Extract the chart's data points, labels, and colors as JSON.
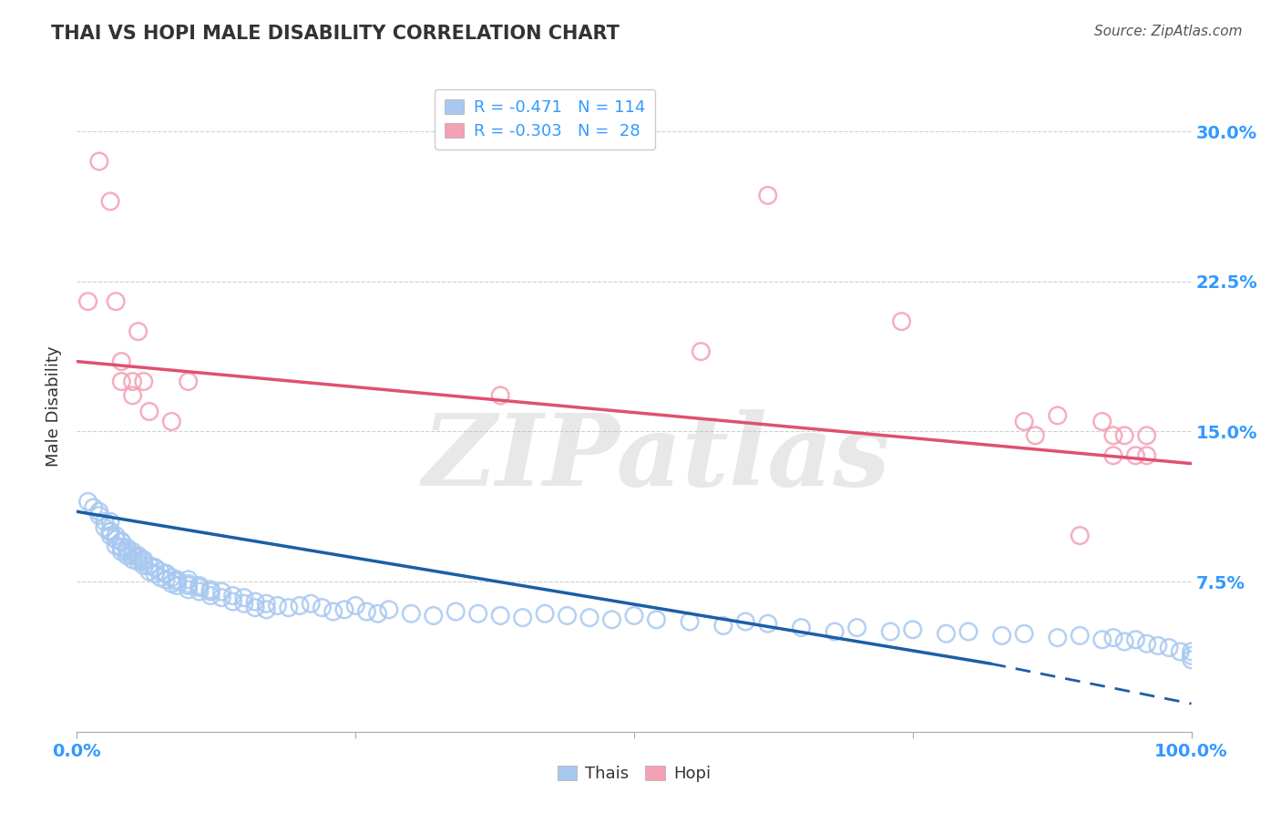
{
  "title": "THAI VS HOPI MALE DISABILITY CORRELATION CHART",
  "source_text": "Source: ZipAtlas.com",
  "watermark": "ZIPatlas",
  "ylabel": "Male Disability",
  "xlim": [
    0,
    1.0
  ],
  "ylim": [
    0.0,
    0.325
  ],
  "yticks": [
    0.075,
    0.15,
    0.225,
    0.3
  ],
  "ytick_labels": [
    "7.5%",
    "15.0%",
    "22.5%",
    "30.0%"
  ],
  "xticks": [
    0.0,
    0.25,
    0.5,
    0.75,
    1.0
  ],
  "xtick_labels": [
    "0.0%",
    "",
    "",
    "",
    "100.0%"
  ],
  "thai_R": -0.471,
  "thai_N": 114,
  "hopi_R": -0.303,
  "hopi_N": 28,
  "thai_color": "#A8C8F0",
  "hopi_color": "#F4A0B5",
  "thai_line_color": "#1B5EA8",
  "hopi_line_color": "#E05070",
  "background_color": "#FFFFFF",
  "grid_color": "#BBBBBB",
  "title_color": "#333333",
  "source_color": "#555555",
  "axis_label_color": "#333333",
  "tick_label_color": "#3399FF",
  "thai_x": [
    0.01,
    0.015,
    0.02,
    0.02,
    0.025,
    0.025,
    0.03,
    0.03,
    0.03,
    0.03,
    0.035,
    0.035,
    0.035,
    0.04,
    0.04,
    0.04,
    0.04,
    0.04,
    0.045,
    0.045,
    0.045,
    0.05,
    0.05,
    0.05,
    0.055,
    0.055,
    0.055,
    0.06,
    0.06,
    0.06,
    0.065,
    0.065,
    0.07,
    0.07,
    0.07,
    0.075,
    0.075,
    0.08,
    0.08,
    0.08,
    0.085,
    0.085,
    0.09,
    0.09,
    0.09,
    0.1,
    0.1,
    0.1,
    0.1,
    0.11,
    0.11,
    0.11,
    0.12,
    0.12,
    0.12,
    0.13,
    0.13,
    0.14,
    0.14,
    0.15,
    0.15,
    0.16,
    0.16,
    0.17,
    0.17,
    0.18,
    0.19,
    0.2,
    0.21,
    0.22,
    0.23,
    0.24,
    0.25,
    0.26,
    0.27,
    0.28,
    0.3,
    0.32,
    0.34,
    0.36,
    0.38,
    0.4,
    0.42,
    0.44,
    0.46,
    0.48,
    0.5,
    0.52,
    0.55,
    0.58,
    0.6,
    0.62,
    0.65,
    0.68,
    0.7,
    0.73,
    0.75,
    0.78,
    0.8,
    0.83,
    0.85,
    0.88,
    0.9,
    0.92,
    0.93,
    0.94,
    0.95,
    0.96,
    0.97,
    0.98,
    0.99,
    1.0,
    1.0,
    1.0
  ],
  "thai_y": [
    0.115,
    0.112,
    0.11,
    0.108,
    0.105,
    0.102,
    0.1,
    0.098,
    0.105,
    0.1,
    0.098,
    0.096,
    0.093,
    0.095,
    0.092,
    0.09,
    0.092,
    0.095,
    0.09,
    0.088,
    0.092,
    0.088,
    0.086,
    0.09,
    0.087,
    0.085,
    0.088,
    0.085,
    0.083,
    0.086,
    0.083,
    0.08,
    0.082,
    0.079,
    0.082,
    0.08,
    0.077,
    0.079,
    0.076,
    0.079,
    0.077,
    0.074,
    0.076,
    0.073,
    0.075,
    0.074,
    0.071,
    0.073,
    0.076,
    0.072,
    0.07,
    0.073,
    0.071,
    0.068,
    0.07,
    0.07,
    0.067,
    0.068,
    0.065,
    0.067,
    0.064,
    0.065,
    0.062,
    0.064,
    0.061,
    0.063,
    0.062,
    0.063,
    0.064,
    0.062,
    0.06,
    0.061,
    0.063,
    0.06,
    0.059,
    0.061,
    0.059,
    0.058,
    0.06,
    0.059,
    0.058,
    0.057,
    0.059,
    0.058,
    0.057,
    0.056,
    0.058,
    0.056,
    0.055,
    0.053,
    0.055,
    0.054,
    0.052,
    0.05,
    0.052,
    0.05,
    0.051,
    0.049,
    0.05,
    0.048,
    0.049,
    0.047,
    0.048,
    0.046,
    0.047,
    0.045,
    0.046,
    0.044,
    0.043,
    0.042,
    0.04,
    0.038,
    0.036,
    0.04
  ],
  "hopi_x": [
    0.01,
    0.02,
    0.03,
    0.035,
    0.04,
    0.04,
    0.05,
    0.05,
    0.055,
    0.06,
    0.065,
    0.085,
    0.1,
    0.38,
    0.56,
    0.62,
    0.74,
    0.85,
    0.86,
    0.88,
    0.9,
    0.92,
    0.93,
    0.93,
    0.94,
    0.95,
    0.96,
    0.96
  ],
  "hopi_y": [
    0.215,
    0.285,
    0.265,
    0.215,
    0.185,
    0.175,
    0.175,
    0.168,
    0.2,
    0.175,
    0.16,
    0.155,
    0.175,
    0.168,
    0.19,
    0.268,
    0.205,
    0.155,
    0.148,
    0.158,
    0.098,
    0.155,
    0.148,
    0.138,
    0.148,
    0.138,
    0.148,
    0.138
  ],
  "thai_line_x0": 0.0,
  "thai_line_y0": 0.11,
  "thai_line_x1": 0.82,
  "thai_line_y1": 0.034,
  "thai_line_dash_x0": 0.82,
  "thai_line_dash_y0": 0.034,
  "thai_line_dash_x1": 1.0,
  "thai_line_dash_y1": 0.014,
  "hopi_line_x0": 0.0,
  "hopi_line_y0": 0.185,
  "hopi_line_x1": 1.0,
  "hopi_line_y1": 0.134
}
